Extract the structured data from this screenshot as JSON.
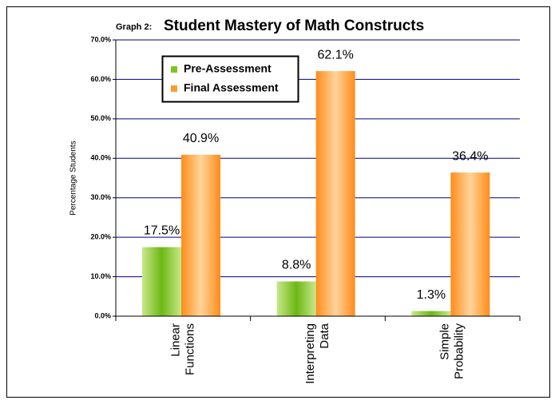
{
  "chart_data": {
    "type": "bar",
    "title_prefix": "Graph 2:",
    "title": "Student Mastery of Math Constructs",
    "y_label": "Percentage Students",
    "categories": [
      "Linear Functions",
      "Interpreting Data",
      "Simple Probability"
    ],
    "series": [
      {
        "name": "Pre-Assessment",
        "color": "#7fc41e",
        "values": [
          17.5,
          8.8,
          1.3
        ],
        "value_labels": [
          "17.5%",
          "8.8%",
          "1.3%"
        ]
      },
      {
        "name": "Final Assessment",
        "color": "#ff9a2e",
        "values": [
          40.9,
          62.1,
          36.4
        ],
        "value_labels": [
          "40.9%",
          "62.1%",
          "36.4%"
        ]
      }
    ],
    "ylim": [
      0,
      70
    ],
    "yticks": [
      {
        "value": 0,
        "label": "0.0%"
      },
      {
        "value": 10,
        "label": "10.0%"
      },
      {
        "value": 20,
        "label": "20.0%"
      },
      {
        "value": 30,
        "label": "30.0%"
      },
      {
        "value": 40,
        "label": "40.0%"
      },
      {
        "value": 50,
        "label": "50.0%"
      },
      {
        "value": 60,
        "label": "60.0%"
      },
      {
        "value": 70,
        "label": "70.0%"
      }
    ],
    "grid": true,
    "legend": "upper left"
  }
}
